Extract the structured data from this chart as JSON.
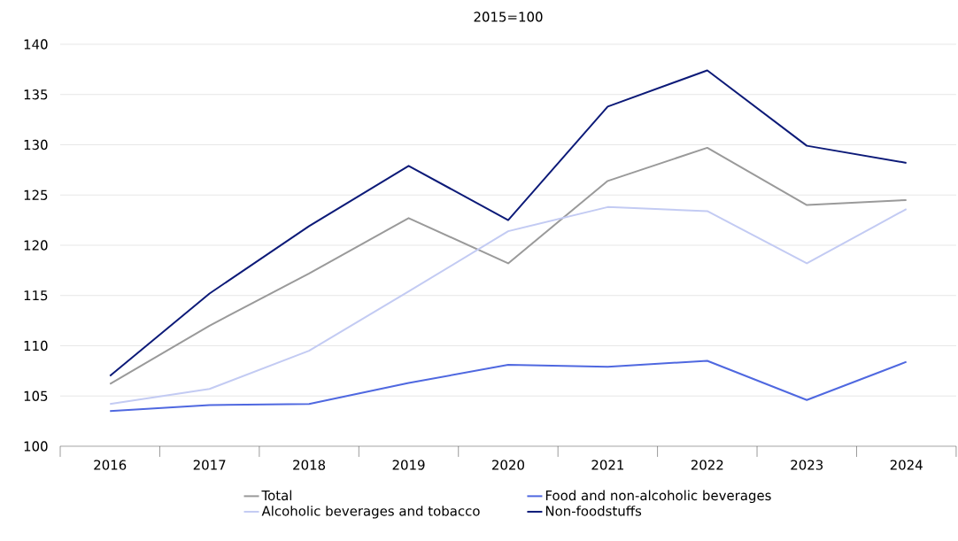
{
  "chart_data": {
    "type": "line",
    "title": "2015=100",
    "categories": [
      "2016",
      "2017",
      "2018",
      "2019",
      "2020",
      "2021",
      "2022",
      "2023",
      "2024"
    ],
    "ylim": [
      100,
      140
    ],
    "yticks": [
      100,
      105,
      110,
      115,
      120,
      125,
      130,
      135,
      140
    ],
    "grid": "y",
    "legend": "bottom",
    "series": [
      {
        "name": "Total",
        "color": "#9a9a9a",
        "values": [
          106.2,
          112.0,
          117.2,
          122.7,
          118.2,
          126.4,
          129.7,
          124.0,
          124.5
        ]
      },
      {
        "name": "Food and non-alcoholic beverages",
        "color": "#4f68e0",
        "values": [
          103.5,
          104.1,
          104.2,
          106.3,
          108.1,
          107.9,
          108.5,
          104.6,
          108.4
        ]
      },
      {
        "name": "Alcoholic beverages and tobacco",
        "color": "#c3cbf3",
        "values": [
          104.2,
          105.7,
          109.5,
          115.4,
          121.4,
          123.8,
          123.4,
          118.2,
          123.6
        ]
      },
      {
        "name": "Non-foodstuffs",
        "color": "#0c1a78",
        "values": [
          107.0,
          115.2,
          121.9,
          127.9,
          122.5,
          133.8,
          137.4,
          129.9,
          128.2
        ]
      }
    ]
  }
}
